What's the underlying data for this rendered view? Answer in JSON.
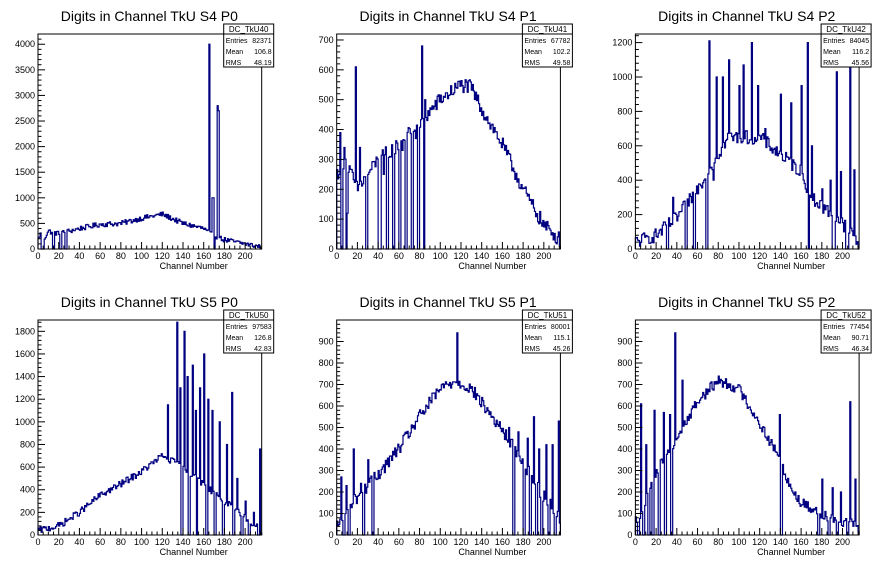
{
  "style": {
    "line_color": "#000080",
    "axis_color": "#000000",
    "background": "#ffffff"
  },
  "chart_data": [
    {
      "type": "histogram",
      "title": "Digits in Channel TkU S4 P0",
      "xlabel": "Channel Number",
      "xlim": [
        0,
        216
      ],
      "ylim": [
        0,
        4200
      ],
      "x_ticks": [
        0,
        20,
        40,
        60,
        80,
        100,
        120,
        140,
        160,
        180,
        200
      ],
      "y_ticks": [
        0,
        500,
        1000,
        1500,
        2000,
        2500,
        3000,
        3500,
        4000
      ],
      "stats": {
        "name": "DC_TkU40",
        "entries": "82371",
        "mean": "106.8",
        "rms": "48.19"
      },
      "trend": [
        [
          0,
          150
        ],
        [
          2,
          300
        ],
        [
          6,
          200
        ],
        [
          10,
          350
        ],
        [
          20,
          300
        ],
        [
          40,
          400
        ],
        [
          60,
          480
        ],
        [
          80,
          500
        ],
        [
          100,
          600
        ],
        [
          120,
          680
        ],
        [
          140,
          500
        ],
        [
          160,
          400
        ],
        [
          170,
          250
        ],
        [
          180,
          180
        ],
        [
          200,
          100
        ],
        [
          216,
          40
        ]
      ],
      "jitter": 50,
      "gaps": [
        [
          3,
          6
        ],
        [
          14,
          16
        ],
        [
          21,
          23
        ],
        [
          26,
          28
        ],
        [
          168,
          171
        ]
      ],
      "spikes": [
        [
          165,
          4000
        ],
        [
          168,
          1000
        ],
        [
          169,
          1000
        ],
        [
          173,
          2800
        ],
        [
          174,
          2700
        ]
      ]
    },
    {
      "type": "histogram",
      "title": "Digits in Channel TkU S4 P1",
      "xlabel": "Channel Number",
      "xlim": [
        0,
        216
      ],
      "ylim": [
        0,
        720
      ],
      "x_ticks": [
        0,
        20,
        40,
        60,
        80,
        100,
        120,
        140,
        160,
        180,
        200
      ],
      "y_ticks": [
        0,
        100,
        200,
        300,
        400,
        500,
        600,
        700
      ],
      "stats": {
        "name": "DC_TkU41",
        "entries": "67782",
        "mean": "102.2",
        "rms": "49.58"
      },
      "trend": [
        [
          0,
          250
        ],
        [
          8,
          300
        ],
        [
          20,
          200
        ],
        [
          40,
          300
        ],
        [
          60,
          350
        ],
        [
          80,
          420
        ],
        [
          100,
          500
        ],
        [
          120,
          550
        ],
        [
          130,
          540
        ],
        [
          140,
          470
        ],
        [
          160,
          350
        ],
        [
          180,
          200
        ],
        [
          200,
          80
        ],
        [
          216,
          30
        ]
      ],
      "jitter": 25,
      "gaps": [
        [
          4,
          6
        ],
        [
          9,
          11
        ],
        [
          28,
          30
        ],
        [
          40,
          43
        ],
        [
          48,
          50
        ],
        [
          54,
          56
        ],
        [
          60,
          62
        ],
        [
          66,
          68
        ],
        [
          72,
          74
        ],
        [
          78,
          80
        ],
        [
          84,
          86
        ]
      ],
      "spikes": [
        [
          3,
          390
        ],
        [
          7,
          340
        ],
        [
          10,
          120
        ],
        [
          18,
          610
        ],
        [
          22,
          340
        ],
        [
          45,
          250
        ],
        [
          51,
          310
        ],
        [
          63,
          330
        ],
        [
          76,
          370
        ],
        [
          82,
          680
        ],
        [
          85,
          500
        ]
      ]
    },
    {
      "type": "histogram",
      "title": "Digits in Channel TkU S4 P2",
      "xlabel": "Channel Number",
      "xlim": [
        0,
        216
      ],
      "ylim": [
        0,
        1250
      ],
      "x_ticks": [
        0,
        20,
        40,
        60,
        80,
        100,
        120,
        140,
        160,
        180,
        200
      ],
      "y_ticks": [
        0,
        200,
        400,
        600,
        800,
        1000,
        1200
      ],
      "stats": {
        "name": "DC_TkU42",
        "entries": "84045",
        "mean": "116.2",
        "rms": "45.56"
      },
      "trend": [
        [
          0,
          40
        ],
        [
          20,
          80
        ],
        [
          40,
          180
        ],
        [
          60,
          350
        ],
        [
          70,
          450
        ],
        [
          90,
          650
        ],
        [
          120,
          650
        ],
        [
          140,
          550
        ],
        [
          160,
          450
        ],
        [
          170,
          300
        ],
        [
          180,
          250
        ],
        [
          200,
          150
        ],
        [
          210,
          80
        ],
        [
          216,
          20
        ]
      ],
      "jitter": 40,
      "gaps": [
        [
          30,
          32
        ],
        [
          48,
          50
        ],
        [
          56,
          58
        ],
        [
          68,
          70
        ],
        [
          166,
          168
        ],
        [
          190,
          193
        ],
        [
          203,
          206
        ]
      ],
      "spikes": [
        [
          36,
          300
        ],
        [
          51,
          250
        ],
        [
          66,
          400
        ],
        [
          71,
          1210
        ],
        [
          75,
          400
        ],
        [
          78,
          1000
        ],
        [
          84,
          1000
        ],
        [
          90,
          1100
        ],
        [
          100,
          950
        ],
        [
          104,
          1070
        ],
        [
          112,
          1200
        ],
        [
          118,
          950
        ],
        [
          125,
          700
        ],
        [
          140,
          900
        ],
        [
          150,
          850
        ],
        [
          160,
          950
        ],
        [
          166,
          1200
        ],
        [
          170,
          600
        ],
        [
          180,
          350
        ],
        [
          188,
          400
        ],
        [
          194,
          1030
        ],
        [
          198,
          450
        ],
        [
          207,
          1160
        ],
        [
          211,
          460
        ]
      ]
    },
    {
      "type": "histogram",
      "title": "Digits in Channel TkU S5 P0",
      "xlabel": "Channel Number",
      "xlim": [
        0,
        216
      ],
      "ylim": [
        0,
        1900
      ],
      "x_ticks": [
        0,
        20,
        40,
        60,
        80,
        100,
        120,
        140,
        160,
        180,
        200
      ],
      "y_ticks": [
        0,
        200,
        400,
        600,
        800,
        1000,
        1200,
        1400,
        1600,
        1800
      ],
      "stats": {
        "name": "DC_TkU50",
        "entries": "97583",
        "mean": "126.8",
        "rms": "42.83"
      },
      "trend": [
        [
          0,
          40
        ],
        [
          20,
          80
        ],
        [
          40,
          200
        ],
        [
          60,
          350
        ],
        [
          80,
          450
        ],
        [
          100,
          560
        ],
        [
          120,
          700
        ],
        [
          130,
          650
        ],
        [
          140,
          600
        ],
        [
          160,
          450
        ],
        [
          180,
          300
        ],
        [
          200,
          150
        ],
        [
          210,
          80
        ],
        [
          216,
          40
        ]
      ],
      "jitter": 30,
      "gaps": [
        [
          138,
          140
        ],
        [
          145,
          147
        ],
        [
          152,
          154
        ],
        [
          162,
          164
        ],
        [
          170,
          172
        ],
        [
          178,
          180
        ],
        [
          188,
          190
        ],
        [
          196,
          198
        ],
        [
          203,
          205
        ],
        [
          212,
          214
        ]
      ],
      "spikes": [
        [
          125,
          1150
        ],
        [
          134,
          1880
        ],
        [
          137,
          1300
        ],
        [
          141,
          1800
        ],
        [
          144,
          1400
        ],
        [
          149,
          1500
        ],
        [
          152,
          1100
        ],
        [
          156,
          1300
        ],
        [
          160,
          1600
        ],
        [
          164,
          1200
        ],
        [
          168,
          1100
        ],
        [
          175,
          1000
        ],
        [
          182,
          800
        ],
        [
          187,
          1260
        ],
        [
          192,
          500
        ],
        [
          200,
          300
        ],
        [
          208,
          200
        ],
        [
          214,
          760
        ]
      ]
    },
    {
      "type": "histogram",
      "title": "Digits in Channel TkU S5 P1",
      "xlabel": "Channel Number",
      "xlim": [
        0,
        216
      ],
      "ylim": [
        0,
        1000
      ],
      "x_ticks": [
        0,
        20,
        40,
        60,
        80,
        100,
        120,
        140,
        160,
        180,
        200
      ],
      "y_ticks": [
        0,
        100,
        200,
        300,
        400,
        500,
        600,
        700,
        800,
        900
      ],
      "stats": {
        "name": "DC_TkU51",
        "entries": "80001",
        "mean": "115.1",
        "rms": "45.26"
      },
      "trend": [
        [
          0,
          40
        ],
        [
          10,
          100
        ],
        [
          20,
          180
        ],
        [
          40,
          280
        ],
        [
          60,
          400
        ],
        [
          80,
          550
        ],
        [
          100,
          680
        ],
        [
          115,
          720
        ],
        [
          130,
          680
        ],
        [
          150,
          550
        ],
        [
          170,
          420
        ],
        [
          180,
          340
        ],
        [
          190,
          250
        ],
        [
          200,
          180
        ],
        [
          210,
          120
        ],
        [
          216,
          80
        ]
      ],
      "jitter": 30,
      "gaps": [
        [
          6,
          8
        ],
        [
          11,
          13
        ],
        [
          25,
          27
        ],
        [
          34,
          36
        ],
        [
          170,
          172
        ],
        [
          180,
          182
        ],
        [
          186,
          188
        ],
        [
          192,
          194
        ],
        [
          197,
          199
        ],
        [
          204,
          206
        ],
        [
          210,
          212
        ]
      ],
      "spikes": [
        [
          4,
          270
        ],
        [
          9,
          230
        ],
        [
          16,
          400
        ],
        [
          23,
          240
        ],
        [
          30,
          350
        ],
        [
          40,
          300
        ],
        [
          116,
          940
        ],
        [
          166,
          500
        ],
        [
          175,
          480
        ],
        [
          184,
          450
        ],
        [
          190,
          550
        ],
        [
          195,
          400
        ],
        [
          202,
          420
        ],
        [
          208,
          420
        ],
        [
          214,
          530
        ]
      ]
    },
    {
      "type": "histogram",
      "title": "Digits in Channel TkU S5 P2",
      "xlabel": "Channel Number",
      "xlim": [
        0,
        216
      ],
      "ylim": [
        0,
        1000
      ],
      "x_ticks": [
        0,
        20,
        40,
        60,
        80,
        100,
        120,
        140,
        160,
        180,
        200
      ],
      "y_ticks": [
        0,
        100,
        200,
        300,
        400,
        500,
        600,
        700,
        800,
        900
      ],
      "stats": {
        "name": "DC_TkU52",
        "entries": "77454",
        "mean": "90.71",
        "rms": "46.34"
      },
      "trend": [
        [
          0,
          60
        ],
        [
          10,
          150
        ],
        [
          20,
          300
        ],
        [
          40,
          450
        ],
        [
          60,
          620
        ],
        [
          80,
          720
        ],
        [
          100,
          680
        ],
        [
          120,
          520
        ],
        [
          140,
          350
        ],
        [
          150,
          220
        ],
        [
          160,
          150
        ],
        [
          180,
          100
        ],
        [
          200,
          60
        ],
        [
          216,
          40
        ]
      ],
      "jitter": 25,
      "gaps": [
        [
          2,
          4
        ],
        [
          7,
          9
        ],
        [
          12,
          14
        ],
        [
          16,
          18
        ],
        [
          22,
          24
        ],
        [
          28,
          30
        ],
        [
          34,
          36
        ],
        [
          140,
          142
        ],
        [
          176,
          178
        ],
        [
          186,
          188
        ],
        [
          194,
          196
        ],
        [
          204,
          206
        ]
      ],
      "spikes": [
        [
          5,
          610
        ],
        [
          10,
          420
        ],
        [
          18,
          580
        ],
        [
          27,
          570
        ],
        [
          33,
          560
        ],
        [
          38,
          940
        ],
        [
          45,
          720
        ],
        [
          55,
          600
        ],
        [
          139,
          560
        ],
        [
          180,
          260
        ],
        [
          190,
          220
        ],
        [
          198,
          200
        ],
        [
          207,
          620
        ],
        [
          212,
          260
        ]
      ]
    }
  ]
}
